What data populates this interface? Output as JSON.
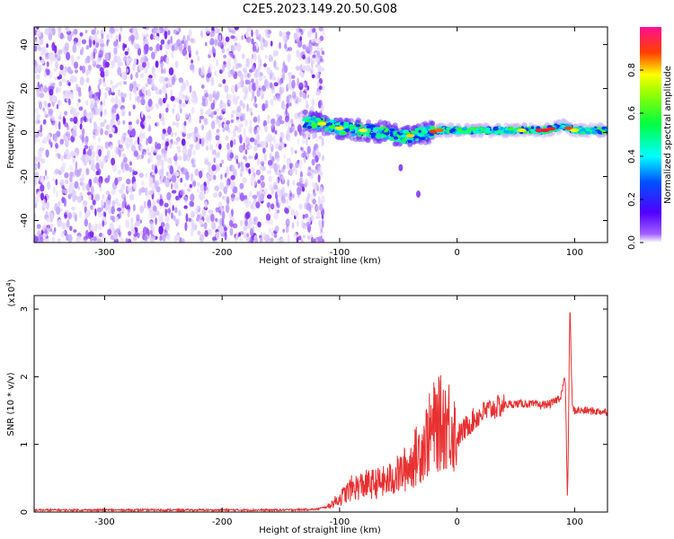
{
  "title": "C2E5.2023.149.20.50.G08",
  "chart_data": [
    {
      "type": "heatmap",
      "name": "spectrogram",
      "xlabel": "Height of straight line (km)",
      "ylabel": "Frequency (Hz)",
      "xlim": [
        -360,
        128
      ],
      "ylim": [
        -50,
        48
      ],
      "xticks": [
        -300,
        -200,
        -100,
        0,
        100
      ],
      "yticks": [
        -40,
        -20,
        0,
        20,
        40
      ],
      "colorbar": {
        "label": "Normalized spectral amplitude",
        "range": [
          0,
          1
        ],
        "ticks": [
          "0.0",
          "0.2",
          "0.4",
          "0.6",
          "0.8"
        ],
        "colormap": [
          "#ffffff",
          "#8a2be2",
          "#3a00ff",
          "#00ffff",
          "#00ff00",
          "#ffff00",
          "#ff0000",
          "#ff1090"
        ]
      },
      "noise_region_x": [
        -360,
        -128
      ],
      "signal_track": [
        {
          "x": -130,
          "f": 5
        },
        {
          "x": -115,
          "f": 4
        },
        {
          "x": -100,
          "f": 2
        },
        {
          "x": -80,
          "f": 1
        },
        {
          "x": -60,
          "f": 0
        },
        {
          "x": -45,
          "f": -2
        },
        {
          "x": -35,
          "f": -1
        },
        {
          "x": -25,
          "f": 0
        },
        {
          "x": -15,
          "f": 1
        },
        {
          "x": 0,
          "f": 1
        },
        {
          "x": 20,
          "f": 1
        },
        {
          "x": 50,
          "f": 1
        },
        {
          "x": 75,
          "f": 1
        },
        {
          "x": 90,
          "f": 3
        },
        {
          "x": 100,
          "f": 1
        },
        {
          "x": 128,
          "f": 1
        }
      ],
      "side_features": [
        {
          "x": -48,
          "f": -16
        },
        {
          "x": -33,
          "f": -28
        }
      ]
    },
    {
      "type": "line",
      "name": "snr",
      "xlabel": "Height of straight line (km)",
      "ylabel": "SNR (10 * v/v)",
      "yscale_label": "(x10",
      "yscale_exp": "4",
      "xlim": [
        -360,
        128
      ],
      "ylim": [
        0,
        3.2
      ],
      "xticks": [
        -300,
        -200,
        -100,
        0,
        100
      ],
      "yticks": [
        0,
        1,
        2,
        3
      ],
      "color": "#e83030",
      "x": [
        -360,
        -250,
        -150,
        -120,
        -110,
        -100,
        -90,
        -80,
        -70,
        -60,
        -50,
        -40,
        -30,
        -20,
        -15,
        -10,
        -5,
        0,
        10,
        20,
        30,
        40,
        50,
        60,
        70,
        80,
        88,
        92,
        94,
        96,
        98,
        100,
        110,
        128
      ],
      "y": [
        0.03,
        0.03,
        0.03,
        0.04,
        0.08,
        0.2,
        0.35,
        0.4,
        0.42,
        0.45,
        0.55,
        0.7,
        0.95,
        1.25,
        1.3,
        1.35,
        1.3,
        1.1,
        1.3,
        1.45,
        1.53,
        1.58,
        1.6,
        1.6,
        1.58,
        1.6,
        1.7,
        2.0,
        0.1,
        3.1,
        1.55,
        1.5,
        1.5,
        1.48
      ]
    }
  ]
}
